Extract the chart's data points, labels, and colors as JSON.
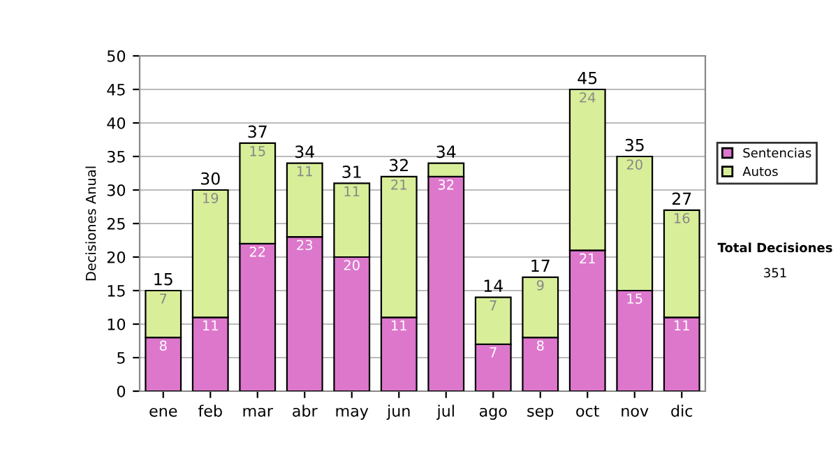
{
  "chart_data": {
    "type": "bar",
    "stacked": true,
    "ylabel": "Decisiones Anual",
    "categories": [
      "ene",
      "feb",
      "mar",
      "abr",
      "may",
      "jun",
      "jul",
      "ago",
      "sep",
      "oct",
      "nov",
      "dic"
    ],
    "series": [
      {
        "name": "Sentencias",
        "color": "#dd77cc",
        "values": [
          8,
          11,
          22,
          23,
          20,
          11,
          32,
          7,
          8,
          21,
          15,
          11
        ],
        "value_labels": [
          "8",
          "11",
          "22",
          "23",
          "20",
          "11",
          "32",
          "7",
          "8",
          "21",
          "15",
          "11"
        ]
      },
      {
        "name": "Autos",
        "color": "#d8ee99",
        "values": [
          7,
          19,
          15,
          11,
          11,
          21,
          2,
          7,
          9,
          24,
          20,
          16
        ],
        "value_labels": [
          "7",
          "19",
          "15",
          "11",
          "11",
          "21",
          null,
          "7",
          "9",
          "24",
          "20",
          "16"
        ]
      }
    ],
    "totals": [
      "15",
      "30",
      "37",
      "34",
      "31",
      "32",
      "34",
      "14",
      "17",
      "45",
      "35",
      "27"
    ],
    "ylim": [
      0,
      50
    ],
    "yticks": [
      0,
      5,
      10,
      15,
      20,
      25,
      30,
      35,
      40,
      45,
      50
    ],
    "grid": "y",
    "legend": "right",
    "annotations": [
      "Total Decisiones",
      "351"
    ]
  }
}
